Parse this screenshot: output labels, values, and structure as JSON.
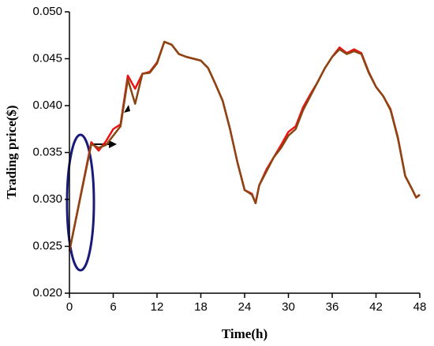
{
  "chart_data": {
    "type": "line",
    "x_label": "Time(h)",
    "y_label": "Trading price($)",
    "x": [
      0,
      3,
      4,
      5,
      6,
      7,
      8,
      9,
      10,
      11,
      12,
      13,
      14,
      15,
      16,
      17,
      18,
      19,
      20,
      21,
      22,
      23,
      24,
      25,
      25.5,
      26,
      27,
      28,
      29,
      30,
      31,
      32,
      33,
      34,
      35,
      36,
      37,
      38,
      39,
      40,
      41,
      42,
      43,
      44,
      45,
      46,
      47,
      47.5,
      48
    ],
    "series": [
      {
        "color": "#ee1111",
        "values": [
          0.0245,
          0.0361,
          0.0352,
          0.0362,
          0.0375,
          0.038,
          0.0432,
          0.0418,
          0.0434,
          0.0436,
          0.0446,
          0.0468,
          0.0465,
          0.0455,
          0.0452,
          0.045,
          0.0448,
          0.044,
          0.0423,
          0.0405,
          0.0375,
          0.034,
          0.031,
          0.0306,
          0.0296,
          0.0315,
          0.0332,
          0.0345,
          0.0358,
          0.0372,
          0.0378,
          0.0398,
          0.0412,
          0.0425,
          0.044,
          0.0452,
          0.0462,
          0.0456,
          0.046,
          0.0456,
          0.0436,
          0.042,
          0.041,
          0.0396,
          0.0366,
          0.0325,
          0.031,
          0.0302,
          0.0305
        ]
      },
      {
        "color": "#8b4513",
        "values": [
          0.0245,
          0.0359,
          0.0355,
          0.0358,
          0.0368,
          0.0378,
          0.0428,
          0.0402,
          0.0434,
          0.0435,
          0.0445,
          0.0468,
          0.0465,
          0.0455,
          0.0452,
          0.045,
          0.0448,
          0.044,
          0.0423,
          0.0405,
          0.0375,
          0.034,
          0.031,
          0.0305,
          0.0296,
          0.0315,
          0.033,
          0.0345,
          0.0355,
          0.0368,
          0.0375,
          0.0395,
          0.041,
          0.0425,
          0.044,
          0.0452,
          0.046,
          0.0455,
          0.0458,
          0.0455,
          0.0435,
          0.042,
          0.041,
          0.0395,
          0.0365,
          0.0325,
          0.031,
          0.0302,
          0.0305
        ]
      }
    ],
    "xlim": [
      0,
      48
    ],
    "xticks": [
      0,
      6,
      12,
      18,
      24,
      30,
      36,
      42,
      48
    ],
    "ylim": [
      0.02,
      0.05
    ],
    "yticks": [
      {
        "value": 0.02,
        "label": "0.020"
      },
      0.025,
      {
        "value": 0.03,
        "label": "0.030"
      },
      0.035,
      {
        "value": 0.04,
        "label": "0.040"
      },
      0.045,
      {
        "value": 0.05,
        "label": "0.050"
      }
    ]
  }
}
